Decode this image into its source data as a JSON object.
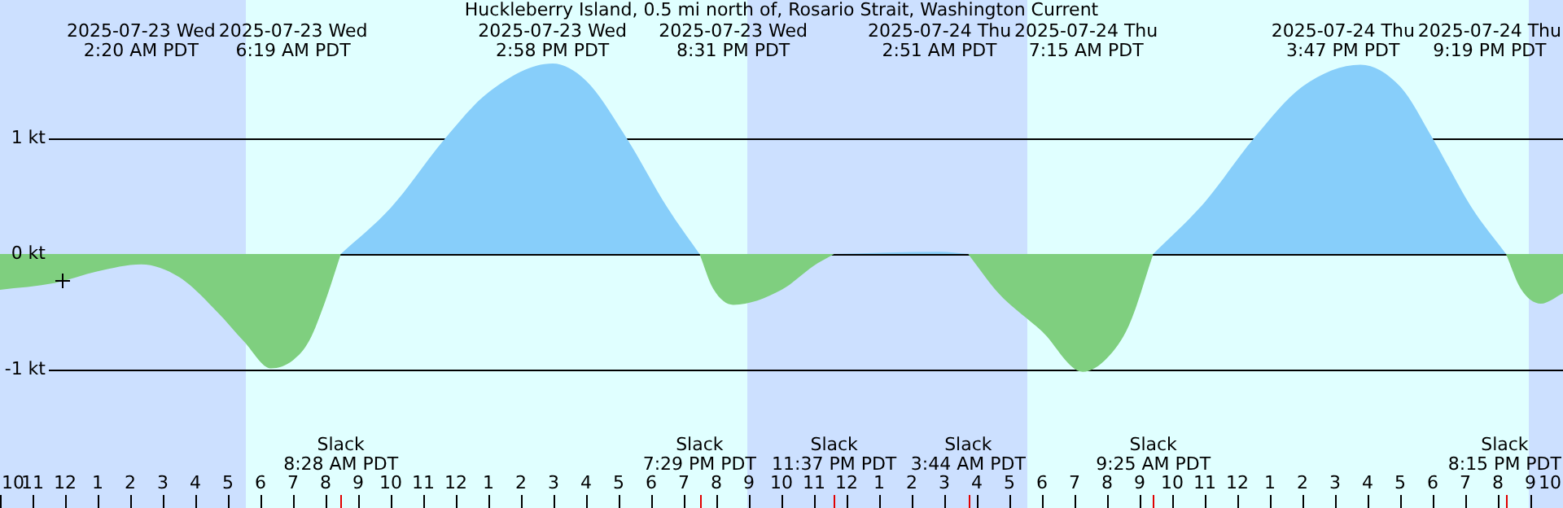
{
  "chart_data": {
    "type": "area",
    "title": "Huckleberry Island, 0.5 mi north of, Rosario Strait, Washington Current",
    "xlim": [
      "2025-07-22T22:00",
      "2025-07-24T22:00"
    ],
    "ylim": [
      -2.2,
      2.2
    ],
    "xticks": [
      {
        "value": "2025-07-22T22:00",
        "label": "10"
      },
      {
        "value": "2025-07-22T23:00",
        "label": "11"
      },
      {
        "value": "2025-07-23T00:00",
        "label": "12"
      },
      {
        "value": "2025-07-23T01:00",
        "label": "1"
      },
      {
        "value": "2025-07-23T02:00",
        "label": "2"
      },
      {
        "value": "2025-07-23T03:00",
        "label": "3"
      },
      {
        "value": "2025-07-23T04:00",
        "label": "4"
      },
      {
        "value": "2025-07-23T05:00",
        "label": "5"
      },
      {
        "value": "2025-07-23T06:00",
        "label": "6"
      },
      {
        "value": "2025-07-23T07:00",
        "label": "7"
      },
      {
        "value": "2025-07-23T08:00",
        "label": "8"
      },
      {
        "value": "2025-07-23T09:00",
        "label": "9"
      },
      {
        "value": "2025-07-23T10:00",
        "label": "10"
      },
      {
        "value": "2025-07-23T11:00",
        "label": "11"
      },
      {
        "value": "2025-07-23T12:00",
        "label": "12"
      },
      {
        "value": "2025-07-23T13:00",
        "label": "1"
      },
      {
        "value": "2025-07-23T14:00",
        "label": "2"
      },
      {
        "value": "2025-07-23T15:00",
        "label": "3"
      },
      {
        "value": "2025-07-23T16:00",
        "label": "4"
      },
      {
        "value": "2025-07-23T17:00",
        "label": "5"
      },
      {
        "value": "2025-07-23T18:00",
        "label": "6"
      },
      {
        "value": "2025-07-23T19:00",
        "label": "7"
      },
      {
        "value": "2025-07-23T20:00",
        "label": "8"
      },
      {
        "value": "2025-07-23T21:00",
        "label": "9"
      },
      {
        "value": "2025-07-23T22:00",
        "label": "10"
      },
      {
        "value": "2025-07-23T23:00",
        "label": "11"
      },
      {
        "value": "2025-07-24T00:00",
        "label": "12"
      },
      {
        "value": "2025-07-24T01:00",
        "label": "1"
      },
      {
        "value": "2025-07-24T02:00",
        "label": "2"
      },
      {
        "value": "2025-07-24T03:00",
        "label": "3"
      },
      {
        "value": "2025-07-24T04:00",
        "label": "4"
      },
      {
        "value": "2025-07-24T05:00",
        "label": "5"
      },
      {
        "value": "2025-07-24T06:00",
        "label": "6"
      },
      {
        "value": "2025-07-24T07:00",
        "label": "7"
      },
      {
        "value": "2025-07-24T08:00",
        "label": "8"
      },
      {
        "value": "2025-07-24T09:00",
        "label": "9"
      },
      {
        "value": "2025-07-24T10:00",
        "label": "10"
      },
      {
        "value": "2025-07-24T11:00",
        "label": "11"
      },
      {
        "value": "2025-07-24T12:00",
        "label": "12"
      },
      {
        "value": "2025-07-24T13:00",
        "label": "1"
      },
      {
        "value": "2025-07-24T14:00",
        "label": "2"
      },
      {
        "value": "2025-07-24T15:00",
        "label": "3"
      },
      {
        "value": "2025-07-24T16:00",
        "label": "4"
      },
      {
        "value": "2025-07-24T17:00",
        "label": "5"
      },
      {
        "value": "2025-07-24T18:00",
        "label": "6"
      },
      {
        "value": "2025-07-24T19:00",
        "label": "7"
      },
      {
        "value": "2025-07-24T20:00",
        "label": "8"
      },
      {
        "value": "2025-07-24T21:00",
        "label": "9"
      },
      {
        "value": "2025-07-24T22:00",
        "label": "10"
      }
    ],
    "yticks": [
      {
        "value": 1,
        "label": "1 kt"
      },
      {
        "value": 0,
        "label": "0 kt"
      },
      {
        "value": -1,
        "label": "-1 kt"
      }
    ],
    "grid": "y",
    "legend": false,
    "series": [
      {
        "color": "#87cefa",
        "x": [
          "2025-07-23T08:28",
          "2025-07-23T10:00",
          "2025-07-23T11:40",
          "2025-07-23T13:00",
          "2025-07-23T14:58",
          "2025-07-23T16:00",
          "2025-07-23T17:15",
          "2025-07-23T18:30",
          "2025-07-23T19:29",
          "2025-07-23T21:00",
          "2025-07-23T23:37",
          "2025-07-24T02:51",
          "2025-07-24T03:44",
          "2025-07-24T06:00",
          "2025-07-24T09:25",
          "2025-07-24T11:00",
          "2025-07-24T12:30",
          "2025-07-24T14:00",
          "2025-07-24T15:47",
          "2025-07-24T17:00",
          "2025-07-24T18:00",
          "2025-07-24T19:12",
          "2025-07-24T20:15"
        ],
        "values": [
          0,
          0.4,
          1.0,
          1.4,
          1.65,
          1.5,
          1.0,
          0.4,
          0,
          null,
          0,
          0.02,
          0,
          null,
          0,
          0.45,
          1.0,
          1.45,
          1.64,
          1.45,
          1.0,
          0.4,
          0
        ]
      },
      {
        "color": "#7fcf7f",
        "x": [
          "2025-07-22T22:00",
          "2025-07-22T23:42",
          "2025-07-23T01:00",
          "2025-07-23T02:20",
          "2025-07-23T03:30",
          "2025-07-23T04:40",
          "2025-07-23T05:30",
          "2025-07-23T06:19",
          "2025-07-23T07:00",
          "2025-07-23T07:30",
          "2025-07-23T08:00",
          "2025-07-23T08:28",
          "2025-07-23T14:00",
          "2025-07-23T19:29",
          "2025-07-23T19:54",
          "2025-07-23T20:31",
          "2025-07-23T22:00",
          "2025-07-23T23:00",
          "2025-07-23T23:37",
          "2025-07-24T01:00",
          "2025-07-24T03:44",
          "2025-07-24T04:40",
          "2025-07-24T06:00",
          "2025-07-24T07:15",
          "2025-07-24T08:00",
          "2025-07-24T08:40",
          "2025-07-24T09:25",
          "2025-07-24T14:00",
          "2025-07-24T20:15",
          "2025-07-24T20:42",
          "2025-07-24T21:19",
          "2025-07-24T22:00"
        ],
        "values": [
          -0.31,
          -0.25,
          -0.15,
          -0.09,
          -0.2,
          -0.5,
          -0.76,
          -0.99,
          -0.92,
          -0.75,
          -0.4,
          0,
          null,
          0,
          -0.3,
          -0.44,
          -0.31,
          -0.1,
          0,
          null,
          0,
          -0.34,
          -0.67,
          -1.02,
          -0.9,
          -0.62,
          0,
          null,
          0,
          -0.3,
          -0.43,
          -0.34
        ]
      }
    ],
    "bands": [
      {
        "axis": "x",
        "from": "2025-07-22T22:00",
        "to": "2025-07-23T05:33",
        "color": "#cce0ff"
      },
      {
        "axis": "x",
        "from": "2025-07-23T20:57",
        "to": "2025-07-24T05:33",
        "color": "#cce0ff"
      },
      {
        "axis": "x",
        "from": "2025-07-24T20:57",
        "to": "2025-07-24T22:00",
        "color": "#cce0ff"
      }
    ],
    "annotations": [
      "2025-07-23 Wed\n2:20 AM PDT",
      "2025-07-23 Wed\n6:19 AM PDT",
      "2025-07-23 Wed\n2:58 PM PDT",
      "2025-07-23 Wed\n8:31 PM PDT",
      "2025-07-24 Thu\n2:51 AM PDT",
      "2025-07-24 Thu\n7:15 AM PDT",
      "2025-07-24 Thu\n3:47 PM PDT",
      "2025-07-24 Thu\n9:19 PM PDT",
      "Slack\n8:28 AM PDT",
      "Slack\n7:29 PM PDT",
      "Slack\n11:37 PM PDT",
      "Slack\n3:44 AM PDT",
      "Slack\n9:25 AM PDT",
      "Slack\n8:15 PM PDT"
    ]
  }
}
